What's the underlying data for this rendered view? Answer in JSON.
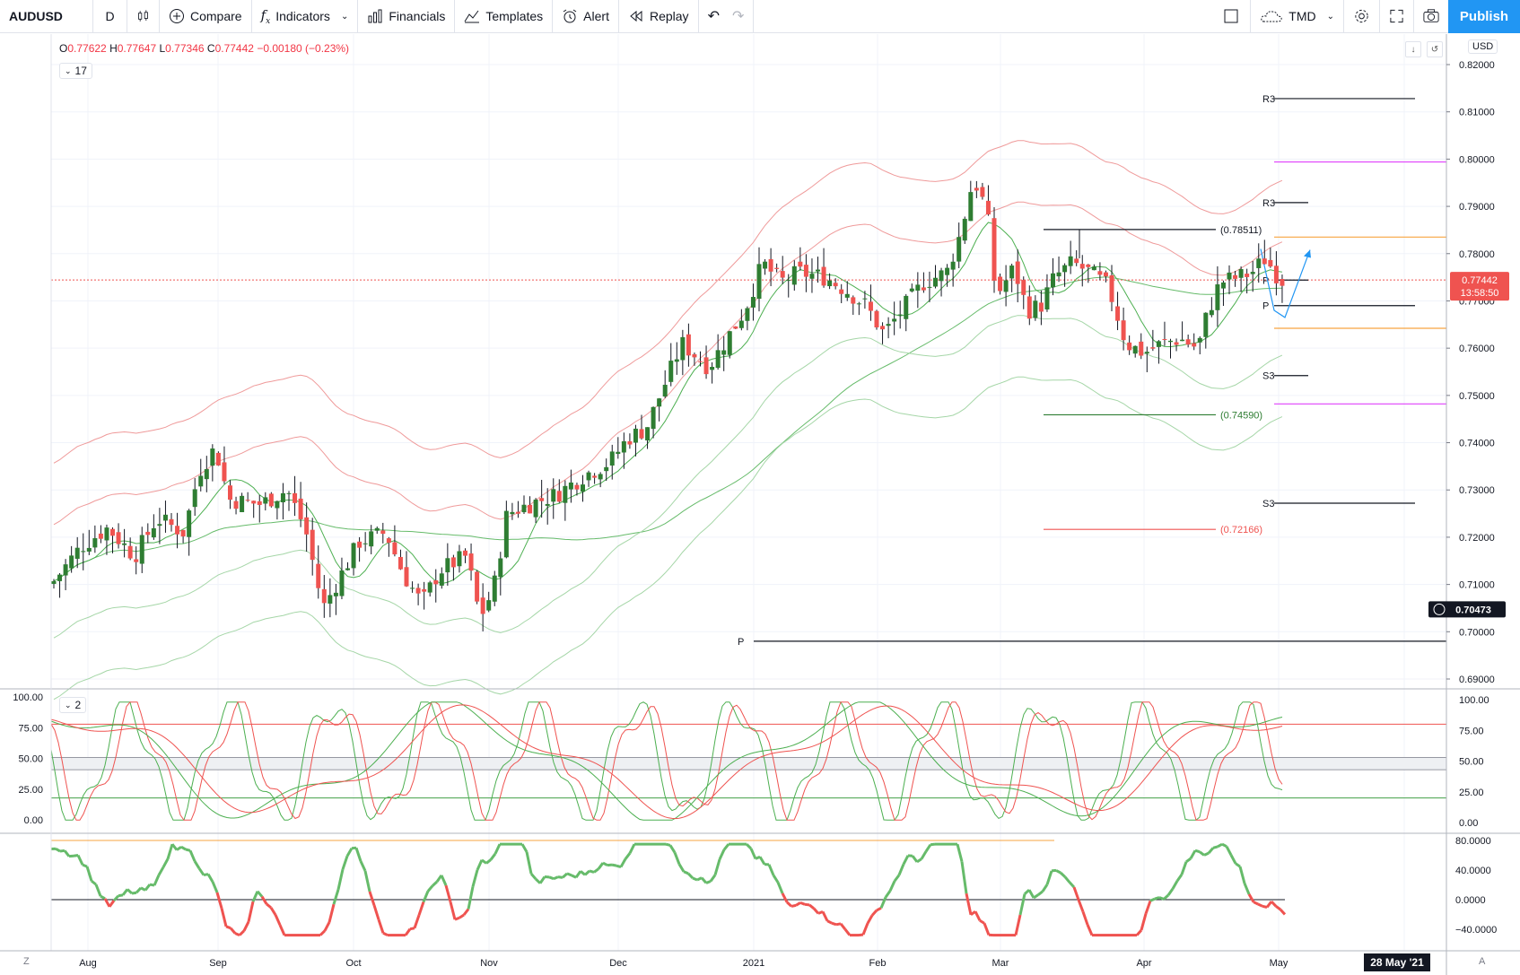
{
  "toolbar": {
    "symbol": "AUDUSD",
    "interval": "D",
    "compare": "Compare",
    "indicators": "Indicators",
    "financials": "Financials",
    "templates": "Templates",
    "alert": "Alert",
    "replay": "Replay",
    "timezone": "TMD",
    "publish": "Publish"
  },
  "legend": {
    "open_key": "O",
    "open": "0.77622",
    "high_key": "H",
    "high": "0.77647",
    "low_key": "L",
    "low": "0.77346",
    "close_key": "C",
    "close": "0.77442",
    "change": "−0.00180 (−0.23%)"
  },
  "main_pane_collapse": "17",
  "osc_pane_collapse": "2",
  "currency": "USD",
  "price_axis": [
    "0.82000",
    "0.81000",
    "0.80000",
    "0.79000",
    "0.78000",
    "0.77000",
    "0.76000",
    "0.75000",
    "0.74000",
    "0.73000",
    "0.72000",
    "0.71000",
    "0.70000",
    "0.69000"
  ],
  "last_price": "0.77442",
  "countdown": "13:58:50",
  "crosshair_price": "0.70473",
  "osc_axis": [
    "100.00",
    "75.00",
    "50.00",
    "25.00",
    "0.00"
  ],
  "osc_left_axis": [
    "100.00",
    "75.00",
    "50.00",
    "25.00",
    "0.00"
  ],
  "mom_axis": [
    "80.0000",
    "40.0000",
    "0.0000",
    "−40.0000"
  ],
  "time_axis": [
    "Aug",
    "Sep",
    "Oct",
    "Nov",
    "Dec",
    "2021",
    "Feb",
    "Mar",
    "Apr",
    "May"
  ],
  "time_cursor": "28 May '21",
  "corner_left": "Z",
  "corner_right": "A",
  "annotations": {
    "high_level": "(0.78511)",
    "low_level": "(0.74590)",
    "red_level": "(0.72166)",
    "r3_a": "R3",
    "r3_b": "R3",
    "p_a": "P",
    "p_b": "P",
    "p_c": "P",
    "s3_a": "S3",
    "s3_b": "S3"
  },
  "colors": {
    "up": "#2e7d32",
    "down": "#ef5350",
    "accent": "#2196f3",
    "orange": "#f7a440",
    "magenta": "#e040fb"
  },
  "chart_data": {
    "type": "candlestick",
    "symbol": "AUDUSD",
    "interval": "D",
    "ylim": [
      0.688,
      0.823
    ],
    "series_ohlc_sample": [
      {
        "date": "2020-07-24",
        "close": 0.71
      },
      {
        "date": "2020-08-31",
        "close": 0.737
      },
      {
        "date": "2020-09-23",
        "close": 0.705
      },
      {
        "date": "2020-11-02",
        "close": 0.703
      },
      {
        "date": "2020-12-31",
        "close": 0.77
      },
      {
        "date": "2021-02-25",
        "close": 0.8
      },
      {
        "date": "2021-03-31",
        "close": 0.76
      },
      {
        "date": "2021-05-03",
        "close": 0.7744
      }
    ],
    "levels": [
      {
        "label": "(0.78511)",
        "value": 0.78511
      },
      {
        "label": "(0.74590)",
        "value": 0.7459
      },
      {
        "label": "(0.72166)",
        "value": 0.72166
      }
    ],
    "oscillator_ylim": [
      0,
      100
    ],
    "momentum_ylim": [
      -50,
      85
    ]
  }
}
